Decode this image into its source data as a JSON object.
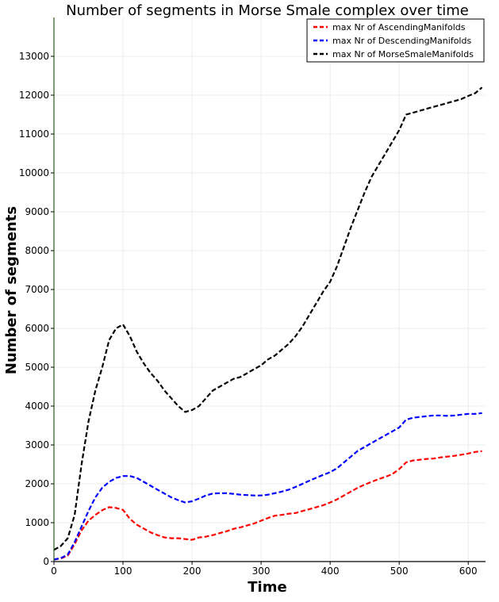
{
  "chart_data": {
    "type": "line",
    "title": "Number of segments in Morse Smale complex over time",
    "xlabel": "Time",
    "ylabel": "Number of segments",
    "xlim": [
      0,
      625
    ],
    "ylim": [
      0,
      14000
    ],
    "xticks": [
      0,
      100,
      200,
      300,
      400,
      500,
      600
    ],
    "yticks": [
      0,
      1000,
      2000,
      3000,
      4000,
      5000,
      6000,
      7000,
      8000,
      9000,
      10000,
      11000,
      12000,
      13000
    ],
    "grid": true,
    "legend_position": "top-right",
    "series": [
      {
        "name": "max Nr of AscendingManifolds",
        "color": "#ff0000",
        "style": "dashed",
        "x": [
          0,
          10,
          20,
          30,
          40,
          50,
          60,
          70,
          80,
          90,
          100,
          110,
          120,
          130,
          140,
          150,
          160,
          170,
          180,
          190,
          200,
          210,
          220,
          230,
          240,
          250,
          260,
          270,
          280,
          290,
          300,
          310,
          320,
          330,
          340,
          350,
          360,
          370,
          380,
          390,
          400,
          410,
          420,
          430,
          440,
          450,
          460,
          470,
          480,
          490,
          500,
          510,
          520,
          530,
          540,
          550,
          560,
          570,
          580,
          590,
          600,
          610,
          620
        ],
        "y": [
          50,
          80,
          150,
          450,
          800,
          1050,
          1200,
          1320,
          1400,
          1380,
          1330,
          1100,
          950,
          850,
          750,
          680,
          620,
          600,
          600,
          580,
          560,
          620,
          640,
          680,
          730,
          780,
          840,
          880,
          930,
          980,
          1050,
          1120,
          1180,
          1200,
          1230,
          1250,
          1300,
          1350,
          1400,
          1450,
          1520,
          1600,
          1700,
          1800,
          1900,
          1980,
          2050,
          2120,
          2180,
          2250,
          2380,
          2550,
          2600,
          2620,
          2640,
          2650,
          2680,
          2700,
          2720,
          2750,
          2780,
          2820,
          2840
        ]
      },
      {
        "name": "max Nr of DescendingManifolds",
        "color": "#0000ff",
        "style": "dashed",
        "x": [
          0,
          10,
          20,
          30,
          40,
          50,
          60,
          70,
          80,
          90,
          100,
          110,
          120,
          130,
          140,
          150,
          160,
          170,
          180,
          190,
          200,
          210,
          220,
          230,
          240,
          250,
          260,
          270,
          280,
          290,
          300,
          310,
          320,
          330,
          340,
          350,
          360,
          370,
          380,
          390,
          400,
          410,
          420,
          430,
          440,
          450,
          460,
          470,
          480,
          490,
          500,
          510,
          520,
          530,
          540,
          550,
          560,
          570,
          580,
          590,
          600,
          610,
          620
        ],
        "y": [
          50,
          90,
          180,
          500,
          900,
          1300,
          1650,
          1900,
          2050,
          2150,
          2200,
          2200,
          2150,
          2050,
          1950,
          1850,
          1750,
          1650,
          1580,
          1520,
          1550,
          1620,
          1700,
          1750,
          1760,
          1760,
          1740,
          1720,
          1710,
          1700,
          1700,
          1720,
          1760,
          1800,
          1850,
          1920,
          2000,
          2080,
          2160,
          2230,
          2300,
          2400,
          2550,
          2700,
          2850,
          2950,
          3050,
          3150,
          3250,
          3350,
          3450,
          3650,
          3700,
          3720,
          3740,
          3760,
          3760,
          3750,
          3760,
          3780,
          3800,
          3800,
          3820
        ]
      },
      {
        "name": "max Nr of MorseSmaleManifolds",
        "color": "#000000",
        "style": "dashed",
        "x": [
          0,
          10,
          20,
          30,
          40,
          50,
          60,
          70,
          80,
          90,
          100,
          110,
          120,
          130,
          140,
          150,
          160,
          170,
          180,
          190,
          200,
          210,
          220,
          230,
          240,
          250,
          260,
          270,
          280,
          290,
          300,
          310,
          320,
          330,
          340,
          350,
          360,
          370,
          380,
          390,
          400,
          410,
          420,
          430,
          440,
          450,
          460,
          470,
          480,
          490,
          500,
          510,
          520,
          530,
          540,
          550,
          560,
          570,
          580,
          590,
          600,
          610,
          620
        ],
        "y": [
          300,
          400,
          600,
          1200,
          2500,
          3600,
          4400,
          5000,
          5700,
          6000,
          6100,
          5800,
          5400,
          5100,
          4850,
          4650,
          4400,
          4200,
          4000,
          3850,
          3900,
          4000,
          4200,
          4400,
          4500,
          4600,
          4700,
          4750,
          4850,
          4950,
          5050,
          5200,
          5300,
          5450,
          5600,
          5800,
          6050,
          6350,
          6650,
          6950,
          7200,
          7600,
          8100,
          8600,
          9050,
          9500,
          9900,
          10200,
          10500,
          10800,
          11100,
          11500,
          11550,
          11600,
          11650,
          11700,
          11750,
          11800,
          11850,
          11900,
          11980,
          12050,
          12200
        ]
      }
    ]
  }
}
